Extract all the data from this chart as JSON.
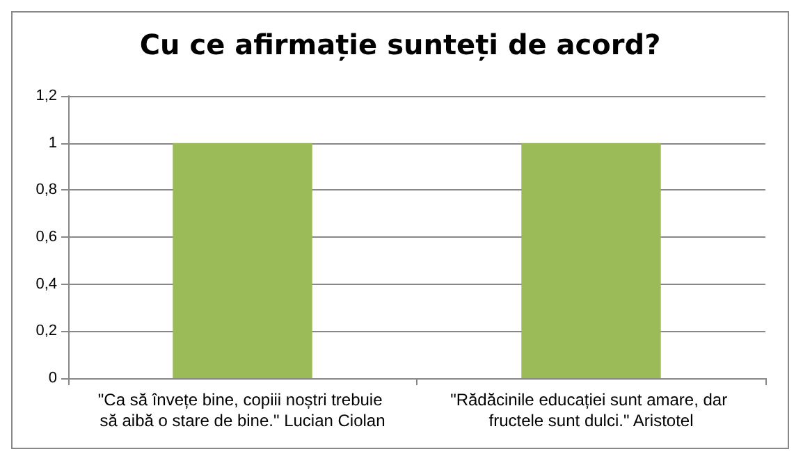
{
  "chart_data": {
    "type": "bar",
    "title": "Cu ce afirmație sunteți de acord?",
    "categories": [
      "\"Ca să învețe bine, copiii noștri trebuie să aibă o stare de bine.\" Lucian Ciolan",
      "\"Rădăcinile educației sunt amare, dar fructele sunt dulci.\" Aristotel"
    ],
    "values": [
      1,
      1
    ],
    "color": "#9bbb59",
    "ylim": [
      0,
      1.2
    ],
    "yticks": [
      0,
      {
        "value": 0.2,
        "label": "0,2"
      },
      {
        "value": 0.4,
        "label": "0,4"
      },
      {
        "value": 0.6,
        "label": "0,6"
      },
      {
        "value": 0.8,
        "label": "0,8"
      },
      1,
      {
        "value": 1.2,
        "label": "1,2"
      }
    ],
    "grid": "y"
  }
}
